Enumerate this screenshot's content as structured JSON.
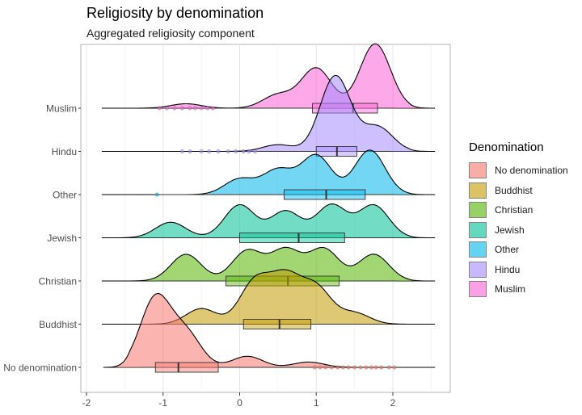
{
  "chart_data": {
    "type": "ridgeline",
    "title": "Religiosity by denomination",
    "subtitle": "Aggregated religiosity component",
    "xlim": [
      -2,
      2.6
    ],
    "x_ticks": [
      -2,
      -1,
      0,
      1,
      2
    ],
    "x_tick_labels": [
      "-2",
      "-1",
      "0",
      "1",
      "2"
    ],
    "categories": [
      "No denomination",
      "Buddhist",
      "Christian",
      "Jewish",
      "Other",
      "Hindu",
      "Muslim"
    ],
    "legend": {
      "title": "Denomination",
      "position": "right",
      "entries": [
        "No denomination",
        "Buddhist",
        "Christian",
        "Jewish",
        "Other",
        "Hindu",
        "Muslim"
      ]
    },
    "colors": {
      "No denomination": "#F8766D",
      "Buddhist": "#C49A00",
      "Christian": "#53B400",
      "Jewish": "#00C094",
      "Other": "#00B6EB",
      "Hindu": "#A58AFF",
      "Muslim": "#FB61D7"
    },
    "series": [
      {
        "name": "No denomination",
        "range": [
          -1.78,
          2.55
        ],
        "density_peaks": [
          [
            -1.1,
            1.55
          ],
          [
            -0.7,
            0.75
          ],
          [
            0.1,
            0.25
          ],
          [
            0.9,
            0.12
          ]
        ],
        "boxplot": {
          "q1": -1.1,
          "median": -0.8,
          "q3": -0.28,
          "whisker_low": -1.28,
          "whisker_high": 0.95
        },
        "outliers": [
          0.98,
          1.05,
          1.12,
          1.2,
          1.28,
          1.35,
          1.42,
          1.5,
          1.58,
          1.65,
          1.72,
          1.78,
          1.85,
          1.95,
          2.02
        ]
      },
      {
        "name": "Buddhist",
        "range": [
          -1.8,
          2.55
        ],
        "density_peaks": [
          [
            -0.5,
            0.35
          ],
          [
            0.2,
            0.95
          ],
          [
            0.6,
            1.0
          ],
          [
            1.0,
            0.8
          ],
          [
            1.5,
            0.25
          ]
        ],
        "boxplot": {
          "q1": 0.05,
          "median": 0.52,
          "q3": 0.93,
          "whisker_low": -1.0,
          "whisker_high": 1.85
        },
        "outliers": []
      },
      {
        "name": "Christian",
        "range": [
          -1.8,
          2.55
        ],
        "density_peaks": [
          [
            -0.7,
            0.6
          ],
          [
            0.1,
            0.68
          ],
          [
            0.6,
            0.7
          ],
          [
            1.1,
            0.72
          ],
          [
            1.75,
            0.6
          ]
        ],
        "boxplot": {
          "q1": -0.18,
          "median": 0.63,
          "q3": 1.3,
          "whisker_low": -1.1,
          "whisker_high": 2.05
        },
        "outliers": []
      },
      {
        "name": "Jewish",
        "range": [
          -1.8,
          2.55
        ],
        "density_peaks": [
          [
            -0.9,
            0.35
          ],
          [
            0.0,
            0.74
          ],
          [
            0.6,
            0.6
          ],
          [
            1.2,
            0.74
          ],
          [
            1.75,
            0.73
          ]
        ],
        "boxplot": {
          "q1": 0.0,
          "median": 0.77,
          "q3": 1.37,
          "whisker_low": -1.05,
          "whisker_high": 2.05
        },
        "outliers": []
      },
      {
        "name": "Other",
        "range": [
          -1.8,
          2.55
        ],
        "density_peaks": [
          [
            0.0,
            0.35
          ],
          [
            0.5,
            0.55
          ],
          [
            1.0,
            0.88
          ],
          [
            1.7,
            1.0
          ]
        ],
        "boxplot": {
          "q1": 0.58,
          "median": 1.13,
          "q3": 1.64,
          "whisker_low": -1.05,
          "whisker_high": 2.05
        },
        "outliers": [
          -1.08
        ]
      },
      {
        "name": "Hindu",
        "range": [
          -1.8,
          2.55
        ],
        "density_peaks": [
          [
            0.5,
            0.15
          ],
          [
            1.25,
            1.7
          ],
          [
            1.8,
            0.55
          ]
        ],
        "boxplot": {
          "q1": 1.0,
          "median": 1.27,
          "q3": 1.53,
          "whisker_low": 0.25,
          "whisker_high": 1.98
        },
        "outliers": [
          -0.75,
          -0.65,
          -0.5,
          -0.4,
          -0.28,
          -0.15,
          -0.05,
          0.05,
          0.12,
          0.2
        ]
      },
      {
        "name": "Muslim",
        "range": [
          -1.8,
          2.55
        ],
        "density_peaks": [
          [
            -0.7,
            0.1
          ],
          [
            0.5,
            0.3
          ],
          [
            1.0,
            0.9
          ],
          [
            1.77,
            1.45
          ]
        ],
        "boxplot": {
          "q1": 0.95,
          "median": 1.48,
          "q3": 1.8,
          "whisker_low": -0.3,
          "whisker_high": 2.05
        },
        "outliers": [
          -1.05,
          -0.95,
          -0.85,
          -0.75,
          -0.65,
          -0.58,
          -0.5,
          -0.42,
          -0.35
        ]
      }
    ]
  }
}
